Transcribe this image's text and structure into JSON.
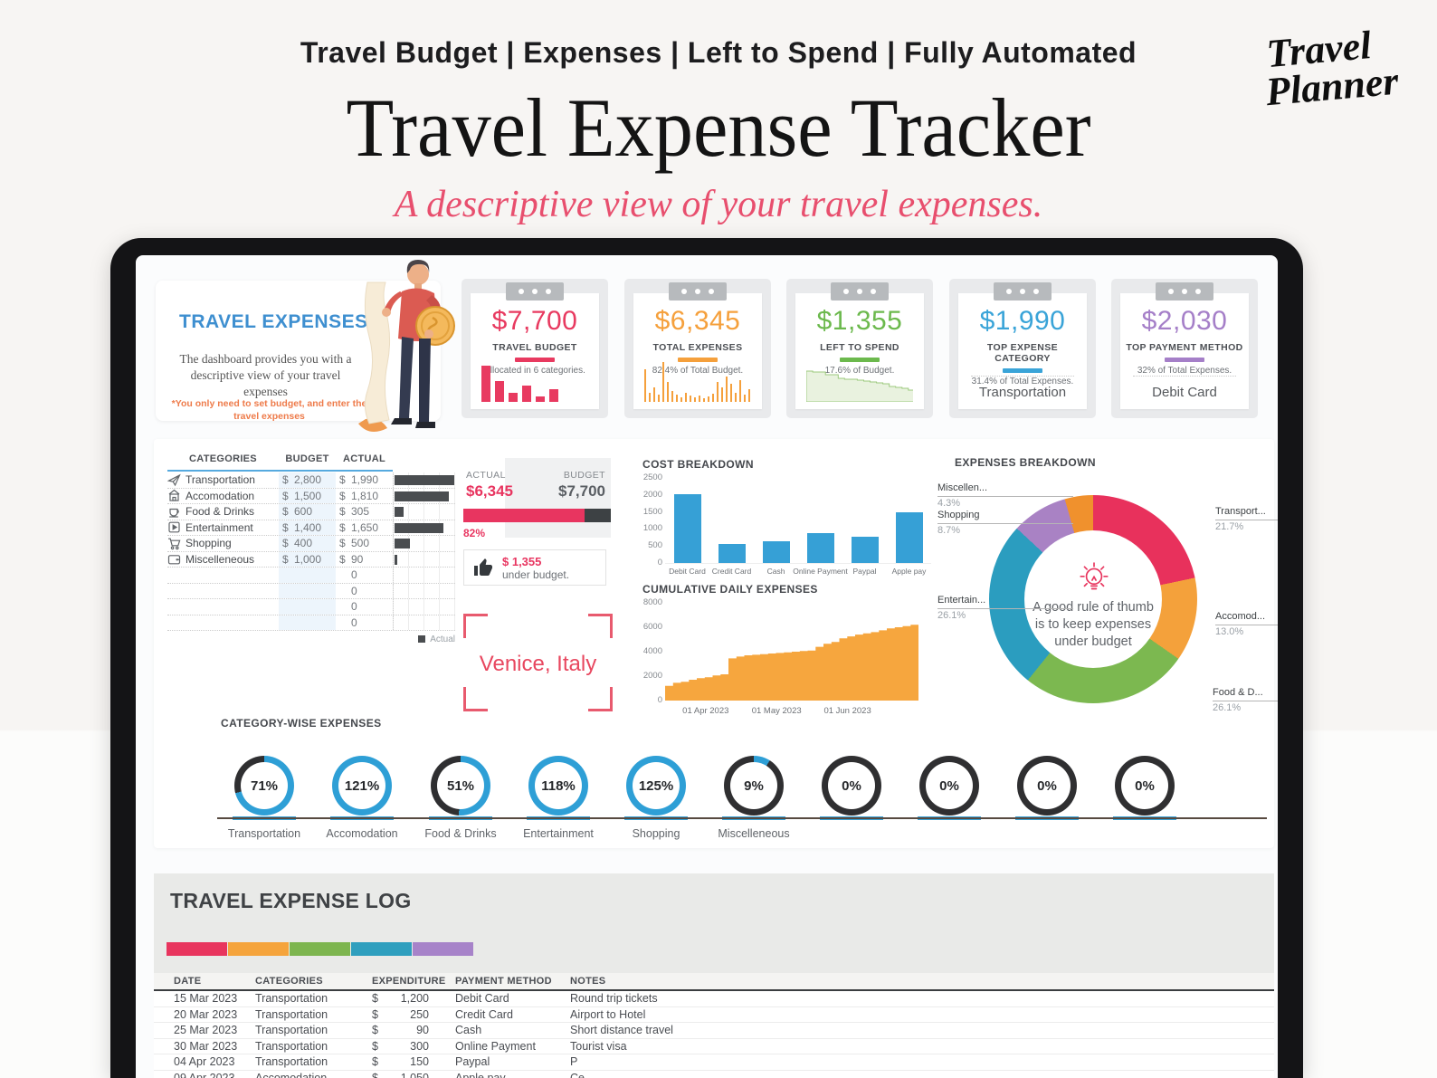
{
  "header": {
    "tagline": "Travel Budget | Expenses | Left to Spend | Fully Automated",
    "title": "Travel Expense Tracker",
    "subtitle": "A descriptive view of your travel expenses.",
    "logo_line1": "Travel",
    "logo_line2": "Planner"
  },
  "intro_card": {
    "title": "TRAVEL EXPENSES",
    "description": "The dashboard provides you with a descriptive view of your travel expenses",
    "note": "*You only need to set budget, and enter the travel expenses"
  },
  "stat_cards": [
    {
      "value": "$7,700",
      "label": "TRAVEL BUDGET",
      "sub": "Allocated in 6 categories.",
      "color": "#e83a60",
      "mini": {
        "type": "bars",
        "values": [
          40,
          23,
          10,
          18,
          6,
          14
        ]
      }
    },
    {
      "value": "$6,345",
      "label": "TOTAL EXPENSES",
      "sub": "82.4% of Total Budget.",
      "color": "#f5a03c",
      "mini": {
        "type": "spikes",
        "values": [
          36,
          10,
          16,
          8,
          44,
          22,
          12,
          8,
          5,
          10,
          7,
          5,
          7,
          4,
          6,
          9,
          22,
          16,
          28,
          20,
          10,
          24,
          8,
          14
        ]
      }
    },
    {
      "value": "$1,355",
      "label": "LEFT TO SPEND",
      "sub": "17.6% of Budget.",
      "color": "#6cb94d",
      "mini": {
        "type": "area",
        "values": [
          34,
          33,
          33,
          30,
          30,
          26,
          25,
          25,
          24,
          23,
          22,
          21,
          20,
          17,
          16,
          15,
          13,
          12,
          11,
          9
        ]
      }
    },
    {
      "value": "$1,990",
      "label": "TOP EXPENSE CATEGORY",
      "sub": "31.4% of Total Expenses.",
      "color": "#3aa4d8",
      "footer": "Transportation"
    },
    {
      "value": "$2,030",
      "label": "TOP PAYMENT METHOD",
      "sub": "32% of Total Expenses.",
      "color": "#a57fc8",
      "footer": "Debit Card"
    }
  ],
  "budget_table": {
    "headers": [
      "CATEGORIES",
      "BUDGET",
      "ACTUAL"
    ],
    "currency": "$",
    "rows": [
      {
        "icon": "plane-icon",
        "category": "Transportation",
        "budget": "2,800",
        "actual": "1,990",
        "actual_num": 1990
      },
      {
        "icon": "hotel-icon",
        "category": "Accomodation",
        "budget": "1,500",
        "actual": "1,810",
        "actual_num": 1810
      },
      {
        "icon": "food-icon",
        "category": "Food & Drinks",
        "budget": "600",
        "actual": "305",
        "actual_num": 305
      },
      {
        "icon": "entertainment-icon",
        "category": "Entertainment",
        "budget": "1,400",
        "actual": "1,650",
        "actual_num": 1650
      },
      {
        "icon": "cart-icon",
        "category": "Shopping",
        "budget": "400",
        "actual": "500",
        "actual_num": 500
      },
      {
        "icon": "wallet-icon",
        "category": "Miscelleneous",
        "budget": "1,000",
        "actual": "90",
        "actual_num": 90
      }
    ],
    "empty_rows": [
      "0",
      "0",
      "0",
      "0"
    ],
    "legend": "Actual",
    "bar_max": 2000
  },
  "budget_summary": {
    "actual_label": "ACTUAL",
    "actual_value": "$6,345",
    "budget_label": "BUDGET",
    "budget_value": "$7,700",
    "percent_label": "82%",
    "percent": 82,
    "under_amount": "$ 1,355",
    "under_text": "under budget."
  },
  "destination": {
    "label": "Venice, Italy"
  },
  "chart_data": [
    {
      "id": "cost_breakdown",
      "type": "bar",
      "title": "COST BREAKDOWN",
      "categories": [
        "Debit Card",
        "Credit Card",
        "Cash",
        "Online Payment",
        "Paypal",
        "Apple pay"
      ],
      "values": [
        2030,
        550,
        640,
        870,
        760,
        1495
      ],
      "ylim": [
        0,
        2500
      ],
      "yticks": [
        0,
        500,
        1000,
        1500,
        2000,
        2500
      ],
      "bar_color": "#36a0d6"
    },
    {
      "id": "cumulative_daily_expenses",
      "type": "area",
      "title": "CUMULATIVE DAILY EXPENSES",
      "ylim": [
        0,
        8000
      ],
      "yticks": [
        0,
        2000,
        4000,
        6000,
        8000
      ],
      "xticks": [
        {
          "label": "01 Apr 2023",
          "pos": 0.16
        },
        {
          "label": "01 May 2023",
          "pos": 0.44
        },
        {
          "label": "01 Jun 2023",
          "pos": 0.72
        }
      ],
      "values": [
        1200,
        1450,
        1540,
        1700,
        1840,
        1900,
        2050,
        2150,
        3450,
        3600,
        3700,
        3750,
        3800,
        3850,
        3900,
        3950,
        4000,
        4050,
        4100,
        4400,
        4650,
        4800,
        5100,
        5250,
        5400,
        5500,
        5600,
        5750,
        5900,
        6000,
        6100,
        6200,
        6345
      ],
      "area_color": "#f6a63e"
    },
    {
      "id": "expenses_breakdown",
      "type": "donut",
      "title": "EXPENSES BREAKDOWN",
      "segments": [
        {
          "label": "Transport...",
          "pct": 21.7,
          "color": "#e8315c"
        },
        {
          "label": "Accomod...",
          "pct": 13.0,
          "color": "#f4a13b"
        },
        {
          "label": "Food & D...",
          "pct": 26.1,
          "color": "#7cb850"
        },
        {
          "label": "Entertain...",
          "pct": 26.1,
          "color": "#2b9dbf"
        },
        {
          "label": "Shopping",
          "pct": 8.7,
          "color": "#a982c4"
        },
        {
          "label": "Miscellen...",
          "pct": 4.3,
          "color": "#f0912d"
        }
      ],
      "center_text": "A good rule of thumb is to keep expenses under budget"
    },
    {
      "id": "category_wise_expenses",
      "type": "gauges",
      "title": "CATEGORY-WISE EXPENSES",
      "fill_color": "#2e9fd6",
      "track_color": "#2f2f31",
      "items": [
        {
          "label": "Transportation",
          "pct": 71
        },
        {
          "label": "Accomodation",
          "pct": 121
        },
        {
          "label": "Food & Drinks",
          "pct": 51
        },
        {
          "label": "Entertainment",
          "pct": 118
        },
        {
          "label": "Shopping",
          "pct": 125
        },
        {
          "label": "Miscelleneous",
          "pct": 9
        },
        {
          "label": "",
          "pct": 0
        },
        {
          "label": "",
          "pct": 0
        },
        {
          "label": "",
          "pct": 0
        },
        {
          "label": "",
          "pct": 0
        }
      ]
    }
  ],
  "expense_log": {
    "title": "TRAVEL EXPENSE LOG",
    "bar_colors": [
      "#e8355e",
      "#f5a43c",
      "#7db54f",
      "#2f9fbe",
      "#a783c9"
    ],
    "headers": [
      "DATE",
      "CATEGORIES",
      "EXPENDITURE",
      "PAYMENT METHOD",
      "NOTES"
    ],
    "currency": "$",
    "rows": [
      {
        "date": "15 Mar 2023",
        "category": "Transportation",
        "amount": "1,200",
        "payment": "Debit Card",
        "notes": "Round trip tickets"
      },
      {
        "date": "20 Mar 2023",
        "category": "Transportation",
        "amount": "250",
        "payment": "Credit Card",
        "notes": "Airport to Hotel"
      },
      {
        "date": "25 Mar 2023",
        "category": "Transportation",
        "amount": "90",
        "payment": "Cash",
        "notes": "Short distance travel"
      },
      {
        "date": "30 Mar 2023",
        "category": "Transportation",
        "amount": "300",
        "payment": "Online Payment",
        "notes": "Tourist visa"
      },
      {
        "date": "04 Apr 2023",
        "category": "Transportation",
        "amount": "150",
        "payment": "Paypal",
        "notes": "P"
      },
      {
        "date": "09 Apr 2023",
        "category": "Accomodation",
        "amount": "1,050",
        "payment": "Apple pay",
        "notes": "Ce"
      }
    ]
  }
}
